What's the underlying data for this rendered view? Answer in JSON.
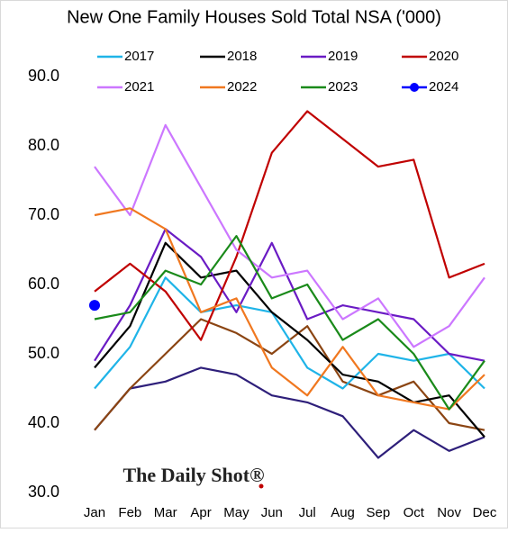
{
  "chart_data": {
    "type": "line",
    "title": "New One Family Houses Sold Total NSA ('000)",
    "watermark": "The Daily Shot®",
    "categories": [
      "Jan",
      "Feb",
      "Mar",
      "Apr",
      "May",
      "Jun",
      "Jul",
      "Aug",
      "Sep",
      "Oct",
      "Nov",
      "Dec"
    ],
    "ylim": [
      30,
      90
    ],
    "yticks": [
      {
        "value": 30,
        "label": "30.0"
      },
      {
        "value": 40,
        "label": "40.0"
      },
      {
        "value": 50,
        "label": "50.0"
      },
      {
        "value": 60,
        "label": "60.0"
      },
      {
        "value": 70,
        "label": "70.0"
      },
      {
        "value": 80,
        "label": "80.0"
      },
      {
        "value": 90,
        "label": "90.0"
      }
    ],
    "grid": false,
    "series": [
      {
        "color": "#2e1f7a",
        "values": [
          39,
          45,
          46,
          48,
          47,
          44,
          43,
          41,
          35,
          39,
          36,
          38
        ]
      },
      {
        "color": "#8b4513",
        "values": [
          39,
          45,
          50,
          55,
          53,
          50,
          54,
          46,
          44,
          46,
          40,
          39
        ]
      },
      {
        "name": "2017",
        "color": "#1fb4e8",
        "values": [
          45,
          51,
          61,
          56,
          57,
          56,
          48,
          45,
          50,
          49,
          50,
          45
        ]
      },
      {
        "name": "2018",
        "color": "#000000",
        "values": [
          48,
          54,
          66,
          61,
          62,
          56,
          52,
          47,
          46,
          43,
          44,
          38
        ]
      },
      {
        "name": "2019",
        "color": "#6a1bc4",
        "values": [
          49,
          57,
          68,
          64,
          56,
          66,
          55,
          57,
          56,
          55,
          50,
          49
        ]
      },
      {
        "name": "2020",
        "color": "#c00000",
        "values": [
          59,
          63,
          59,
          52,
          64,
          79,
          85,
          81,
          77,
          78,
          61,
          63
        ]
      },
      {
        "name": "2021",
        "color": "#cc77ff",
        "values": [
          77,
          70,
          83,
          74,
          65,
          61,
          62,
          55,
          58,
          51,
          54,
          61
        ]
      },
      {
        "name": "2022",
        "color": "#f07820",
        "values": [
          70,
          71,
          68,
          56,
          58,
          48,
          44,
          51,
          44,
          43,
          42,
          47
        ]
      },
      {
        "name": "2023",
        "color": "#1a8a1a",
        "values": [
          55,
          56,
          62,
          60,
          67,
          58,
          60,
          52,
          55,
          50,
          42,
          49
        ]
      },
      {
        "name": "2024",
        "color": "#0000ff",
        "values": [
          57,
          null,
          null,
          null,
          null,
          null,
          null,
          null,
          null,
          null,
          null,
          null
        ]
      }
    ]
  }
}
